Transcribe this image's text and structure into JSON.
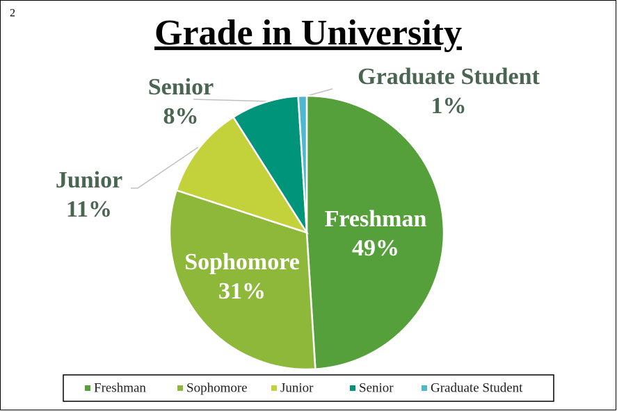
{
  "page_number": "2",
  "chart_data": {
    "type": "pie",
    "title": "Grade in University",
    "categories": [
      "Freshman",
      "Sophomore",
      "Junior",
      "Senior",
      "Graduate Student"
    ],
    "values": [
      49,
      31,
      11,
      8,
      1
    ],
    "value_labels": [
      "49%",
      "31%",
      "11%",
      "8%",
      "1%"
    ],
    "colors": [
      "#55a03a",
      "#8db83a",
      "#c3d13a",
      "#00957a",
      "#4fb8d0"
    ],
    "legend": "bottom"
  }
}
